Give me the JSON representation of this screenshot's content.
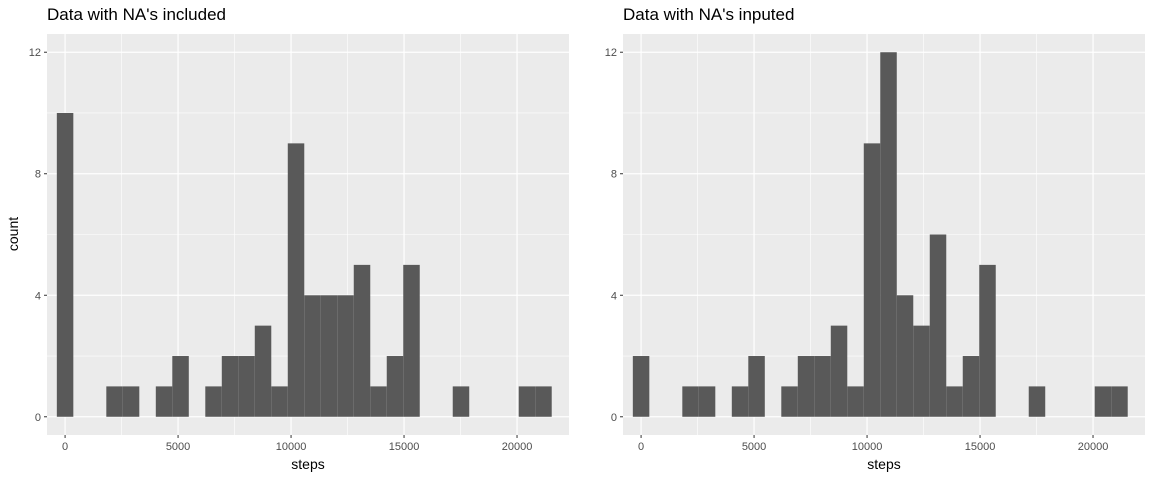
{
  "chart_data": [
    {
      "type": "bar",
      "title": "Data with NA's included",
      "xlabel": "steps",
      "ylabel": "count",
      "xlim": [
        -800,
        22300
      ],
      "ylim": [
        -0.6,
        12.6
      ],
      "xticks": [
        0,
        5000,
        10000,
        15000,
        20000
      ],
      "xtick_labels": [
        "0",
        "5000",
        "10000",
        "15000",
        "20000"
      ],
      "yticks": [
        0,
        4,
        8,
        12
      ],
      "ytick_labels": [
        "0",
        "4",
        "8",
        "12"
      ],
      "grid": true,
      "bin_width": 730,
      "bin_centers": [
        0,
        730,
        1460,
        2190,
        2920,
        3650,
        4380,
        5110,
        5840,
        6570,
        7300,
        8030,
        8760,
        9490,
        10220,
        10950,
        11680,
        12410,
        13140,
        13870,
        14600,
        15330,
        16060,
        16790,
        17520,
        18250,
        18980,
        19710,
        20440,
        21170
      ],
      "counts": [
        10,
        0,
        0,
        1,
        1,
        0,
        1,
        2,
        0,
        1,
        2,
        2,
        3,
        1,
        9,
        4,
        4,
        4,
        5,
        1,
        2,
        5,
        0,
        0,
        1,
        0,
        0,
        0,
        1,
        1
      ]
    },
    {
      "type": "bar",
      "title": "Data with NA's inputed",
      "xlabel": "steps",
      "ylabel": "",
      "xlim": [
        -800,
        22300
      ],
      "ylim": [
        -0.6,
        12.6
      ],
      "xticks": [
        0,
        5000,
        10000,
        15000,
        20000
      ],
      "xtick_labels": [
        "0",
        "5000",
        "10000",
        "15000",
        "20000"
      ],
      "yticks": [
        0,
        4,
        8,
        12
      ],
      "ytick_labels": [
        "0",
        "4",
        "8",
        "12"
      ],
      "grid": true,
      "bin_width": 730,
      "bin_centers": [
        0,
        730,
        1460,
        2190,
        2920,
        3650,
        4380,
        5110,
        5840,
        6570,
        7300,
        8030,
        8760,
        9490,
        10220,
        10950,
        11680,
        12410,
        13140,
        13870,
        14600,
        15330,
        16060,
        16790,
        17520,
        18250,
        18980,
        19710,
        20440,
        21170
      ],
      "counts": [
        2,
        0,
        0,
        1,
        1,
        0,
        1,
        2,
        0,
        1,
        2,
        2,
        3,
        1,
        9,
        12,
        4,
        3,
        6,
        1,
        2,
        5,
        0,
        0,
        1,
        0,
        0,
        0,
        1,
        1
      ]
    }
  ],
  "colors": {
    "panel_background": "#ebebeb",
    "grid_major": "#ffffff",
    "bar_fill": "#595959",
    "tick_text": "#4d4d4d",
    "tick_mark": "#333333"
  }
}
